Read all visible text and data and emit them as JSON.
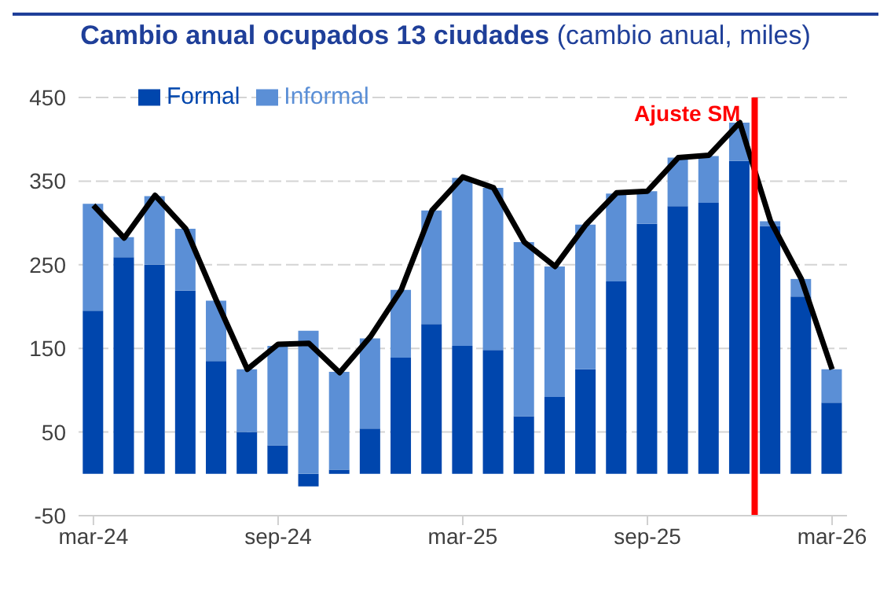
{
  "chart_data": {
    "type": "bar",
    "title": "Cambio anual ocupados 13 ciudades",
    "subtitle": "(cambio anual, miles)",
    "x": [
      "2024-03",
      "2024-04",
      "2024-05",
      "2024-06",
      "2024-07",
      "2024-08",
      "2024-09",
      "2024-10",
      "2024-11",
      "2024-12",
      "2025-01",
      "2025-02",
      "2025-03",
      "2025-04",
      "2025-05",
      "2025-06",
      "2025-07",
      "2025-08",
      "2025-09",
      "2025-10",
      "2025-11",
      "2025-12",
      "2026-01",
      "2026-02",
      "2026-03"
    ],
    "stacked": true,
    "series": [
      {
        "name": "Formal",
        "color": "#0046ad",
        "values": [
          195,
          259,
          250,
          219,
          135,
          50,
          34,
          -15,
          5,
          54,
          139,
          179,
          153,
          148,
          69,
          92,
          125,
          230,
          299,
          320,
          324,
          374,
          296,
          212,
          85
        ]
      },
      {
        "name": "Informal",
        "color": "#5b8fd6",
        "values": [
          128,
          24,
          82,
          74,
          72,
          75,
          119,
          171,
          117,
          108,
          81,
          136,
          201,
          194,
          208,
          156,
          173,
          105,
          39,
          58,
          56,
          46,
          6,
          21,
          40
        ]
      },
      {
        "type": "line",
        "color": "#000000",
        "values": [
          321,
          282,
          333,
          293,
          207,
          125,
          155,
          156,
          121,
          164,
          220,
          315,
          355,
          342,
          277,
          248,
          298,
          336,
          338,
          378,
          381,
          420,
          302,
          233,
          125
        ]
      }
    ],
    "xlim": [
      "2024-02-16",
      "2026-03-16"
    ],
    "xticks": [
      {
        "value": "2024-03",
        "label": "mar-24"
      },
      {
        "value": "2024-09",
        "label": "sep-24"
      },
      {
        "value": "2025-03",
        "label": "mar-25"
      },
      {
        "value": "2025-09",
        "label": "sep-25"
      },
      {
        "value": "2026-03",
        "label": "mar-26"
      }
    ],
    "ylim": [
      -50,
      450
    ],
    "yticks": [
      -50,
      50,
      150,
      250,
      350,
      450
    ],
    "ref_lines": [
      {
        "axis": "x",
        "value": "2025-12-16",
        "label": "Ajuste SM",
        "color": "#ff0000"
      }
    ],
    "grid": "y",
    "legend": "top left",
    "marker": "none"
  }
}
